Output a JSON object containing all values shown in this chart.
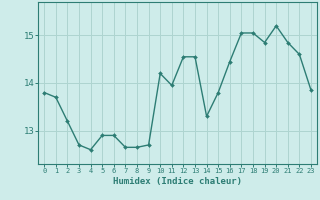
{
  "xlabel": "Humidex (Indice chaleur)",
  "ylabel": "",
  "x": [
    0,
    1,
    2,
    3,
    4,
    5,
    6,
    7,
    8,
    9,
    10,
    11,
    12,
    13,
    14,
    15,
    16,
    17,
    18,
    19,
    20,
    21,
    22,
    23
  ],
  "y": [
    13.8,
    13.7,
    13.2,
    12.7,
    12.6,
    12.9,
    12.9,
    12.65,
    12.65,
    12.7,
    14.2,
    13.95,
    14.55,
    14.55,
    13.3,
    13.8,
    14.45,
    15.05,
    15.05,
    14.85,
    15.2,
    14.85,
    14.6,
    13.85
  ],
  "line_color": "#2d7d74",
  "marker": "D",
  "marker_size": 2.0,
  "line_width": 1.0,
  "bg_color": "#ceecea",
  "grid_color": "#aed4d0",
  "tick_color": "#2d7d74",
  "label_color": "#2d7d74",
  "axis_color": "#2d7d74",
  "ylim": [
    12.3,
    15.7
  ],
  "yticks": [
    13,
    14,
    15
  ],
  "xtick_labels": [
    "0",
    "1",
    "2",
    "3",
    "4",
    "5",
    "6",
    "7",
    "8",
    "9",
    "10",
    "11",
    "12",
    "13",
    "14",
    "15",
    "16",
    "17",
    "18",
    "19",
    "20",
    "21",
    "22",
    "23"
  ]
}
